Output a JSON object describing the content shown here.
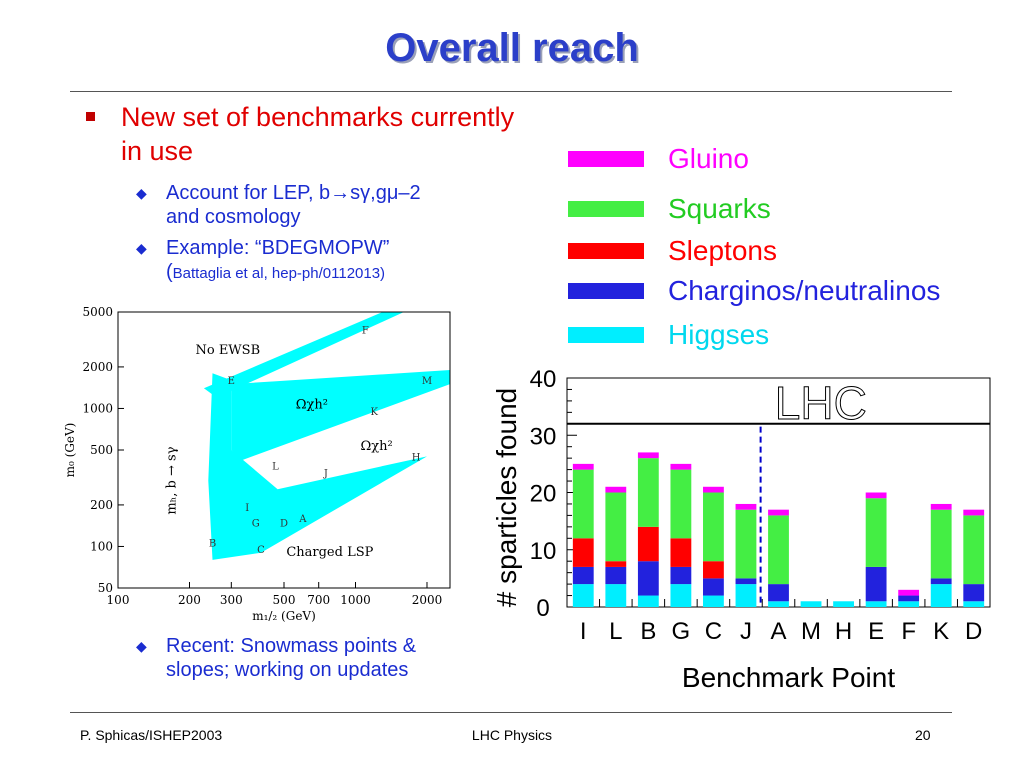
{
  "title": "Overall reach",
  "bullets": {
    "main": "New set of benchmarks currently in use",
    "sub1_l1": "Account for LEP, b→sγ,gμ–2",
    "sub1_l2": "and cosmology",
    "sub2_l1": "Example: “BDEGMOPW”",
    "sub2_paren": "(",
    "sub2_ref": "Battaglia et al, hep-ph/0112013)",
    "sub3_l1": "Recent: Snowmass points &",
    "sub3_l2": "slopes; working on updates"
  },
  "colors": {
    "title": "#2b3fc9",
    "gluino": "#ff00ff",
    "squarks": "#44ee44",
    "sleptons": "#ff0000",
    "charginos": "#2222dd",
    "higgses": "#00eeff",
    "region": "#00ffff"
  },
  "footer": {
    "left": "P. Sphicas/ISHEP2003",
    "center": "LHC Physics",
    "page": "20"
  },
  "chart_data": [
    {
      "type": "scatter",
      "xlabel": "m₁/₂ (GeV)",
      "ylabel": "m₀ (GeV)",
      "xscale": "log",
      "yscale": "log",
      "xlim": [
        100,
        2500
      ],
      "ylim": [
        50,
        5000
      ],
      "xticks": [
        "100",
        "200",
        "300",
        "500",
        "700",
        "1000",
        "2000"
      ],
      "yticks": [
        "50",
        "100",
        "200",
        "500",
        "1000",
        "2000",
        "5000"
      ],
      "region_labels": [
        "No EWSB",
        "Charged LSP",
        "mₕ, b → sγ"
      ],
      "relic_labels": [
        "Ωχh²",
        "Ωχh²"
      ],
      "points": [
        {
          "name": "B",
          "x": 250,
          "y": 100
        },
        {
          "name": "C",
          "x": 400,
          "y": 90
        },
        {
          "name": "G",
          "x": 380,
          "y": 140
        },
        {
          "name": "I",
          "x": 350,
          "y": 180
        },
        {
          "name": "D",
          "x": 500,
          "y": 140
        },
        {
          "name": "A",
          "x": 600,
          "y": 150
        },
        {
          "name": "L",
          "x": 460,
          "y": 360
        },
        {
          "name": "J",
          "x": 750,
          "y": 320
        },
        {
          "name": "H",
          "x": 1800,
          "y": 420
        },
        {
          "name": "E",
          "x": 300,
          "y": 1500
        },
        {
          "name": "K",
          "x": 1200,
          "y": 900
        },
        {
          "name": "M",
          "x": 2000,
          "y": 1500
        },
        {
          "name": "F",
          "x": 1100,
          "y": 3500
        }
      ]
    },
    {
      "type": "bar",
      "stacked": true,
      "annotation": "LHC",
      "xlabel": "Benchmark Point",
      "ylabel": "# sparticles found",
      "ylim": [
        0,
        40
      ],
      "yticks": [
        0,
        10,
        20,
        30,
        40
      ],
      "categories": [
        "I",
        "L",
        "B",
        "G",
        "C",
        "J",
        "A",
        "M",
        "H",
        "E",
        "F",
        "K",
        "D"
      ],
      "legend_position": "top-right",
      "series": [
        {
          "name": "Higgses",
          "color": "#00eeff",
          "values": [
            4,
            4,
            2,
            4,
            2,
            4,
            1,
            1,
            1,
            1,
            1,
            4,
            1
          ]
        },
        {
          "name": "Charginos/neutralinos",
          "color": "#2222dd",
          "values": [
            3,
            3,
            6,
            3,
            3,
            1,
            3,
            0,
            0,
            6,
            1,
            1,
            3
          ]
        },
        {
          "name": "Sleptons",
          "color": "#ff0000",
          "values": [
            5,
            1,
            6,
            5,
            3,
            0,
            0,
            0,
            0,
            0,
            0,
            0,
            0
          ]
        },
        {
          "name": "Squarks",
          "color": "#44ee44",
          "values": [
            12,
            12,
            12,
            12,
            12,
            12,
            12,
            0,
            0,
            12,
            0,
            12,
            12
          ]
        },
        {
          "name": "Gluino",
          "color": "#ff00ff",
          "values": [
            1,
            1,
            1,
            1,
            1,
            1,
            1,
            0,
            0,
            1,
            1,
            1,
            1
          ]
        }
      ]
    }
  ]
}
